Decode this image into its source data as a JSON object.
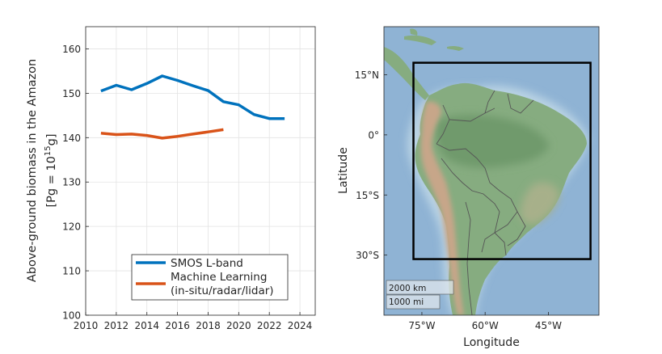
{
  "chart_data": [
    {
      "type": "line",
      "title": "",
      "xlabel": "",
      "ylabel_line1": "Above-ground biomass in the Amazon",
      "ylabel_line2_prefix": "[Pg = 10",
      "ylabel_line2_sup": "15",
      "ylabel_line2_suffix": "g]",
      "xlim": [
        2010,
        2025
      ],
      "ylim": [
        100,
        165
      ],
      "xticks": [
        2010,
        2012,
        2014,
        2016,
        2018,
        2020,
        2022,
        2024
      ],
      "yticks": [
        100,
        110,
        120,
        130,
        140,
        150,
        160
      ],
      "grid": true,
      "legend_position": "bottom-right",
      "series": [
        {
          "name": "SMOS L-band",
          "color": "#0072BD",
          "x": [
            2011,
            2012,
            2013,
            2014,
            2015,
            2016,
            2017,
            2018,
            2019,
            2020,
            2021,
            2022,
            2023
          ],
          "y": [
            150.5,
            151.8,
            150.8,
            152.2,
            153.9,
            152.9,
            151.7,
            150.6,
            148.1,
            147.4,
            145.2,
            144.3,
            144.3
          ]
        },
        {
          "name_line1": "Machine Learning",
          "name_line2": "(in-situ/radar/lidar)",
          "color": "#D95319",
          "x": [
            2011,
            2012,
            2013,
            2014,
            2015,
            2016,
            2017,
            2018,
            2019
          ],
          "y": [
            141.0,
            140.7,
            140.8,
            140.5,
            139.9,
            140.3,
            140.8,
            141.3,
            141.8
          ]
        }
      ]
    },
    {
      "type": "map",
      "xlabel": "Longitude",
      "ylabel": "Latitude",
      "lon_range": [
        -84,
        -33
      ],
      "lat_range": [
        -45,
        27
      ],
      "lon_ticks": [
        -75,
        -60,
        -45
      ],
      "lon_tick_labels": [
        "75°W",
        "60°W",
        "45°W"
      ],
      "lat_ticks": [
        15,
        0,
        -15,
        -30
      ],
      "lat_tick_labels": [
        "15°N",
        "0°",
        "15°S",
        "30°S"
      ],
      "study_region": {
        "lon_min": -77,
        "lon_max": -35,
        "lat_min": -31,
        "lat_max": 18
      },
      "scalebar": [
        "2000 km",
        "1000 mi"
      ],
      "colors": {
        "ocean": "#8fb3d4",
        "land": "#86ac80",
        "mountains": "#c7a689",
        "border": "#555555",
        "box": "#000000"
      }
    }
  ]
}
